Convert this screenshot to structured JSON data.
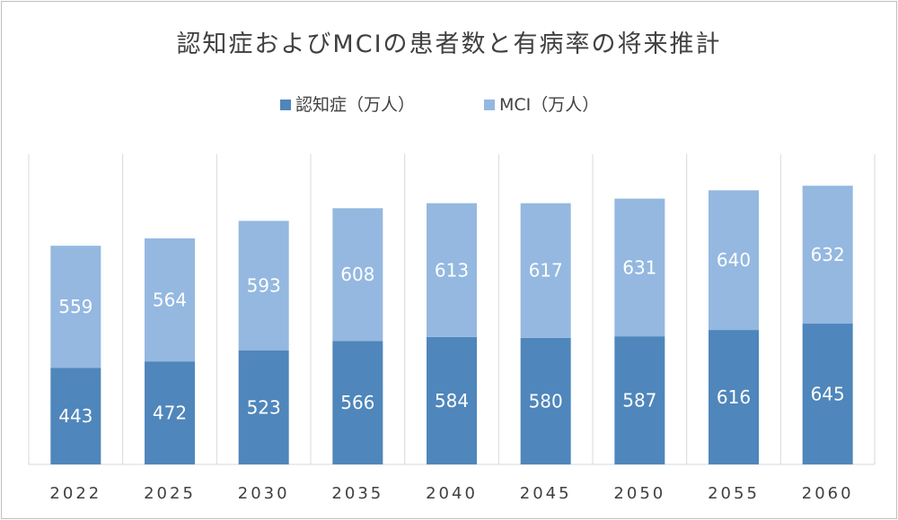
{
  "chart_data": {
    "type": "bar",
    "stacked": true,
    "title": "認知症およびMCIの患者数と有病率の将来推計",
    "categories": [
      "2022",
      "2025",
      "2030",
      "2035",
      "2040",
      "2045",
      "2050",
      "2055",
      "2060"
    ],
    "series": [
      {
        "name": "認知症（万人）",
        "values": [
          443,
          472,
          523,
          566,
          584,
          580,
          587,
          616,
          645
        ],
        "color": "#4f86bb"
      },
      {
        "name": "MCI（万人）",
        "values": [
          559,
          564,
          593,
          608,
          613,
          617,
          631,
          640,
          632
        ],
        "color": "#94b8e0"
      }
    ],
    "ylim": [
      0,
      1450
    ],
    "grid": "vertical-category-lines",
    "legend_position": "top",
    "data_labels": true
  }
}
